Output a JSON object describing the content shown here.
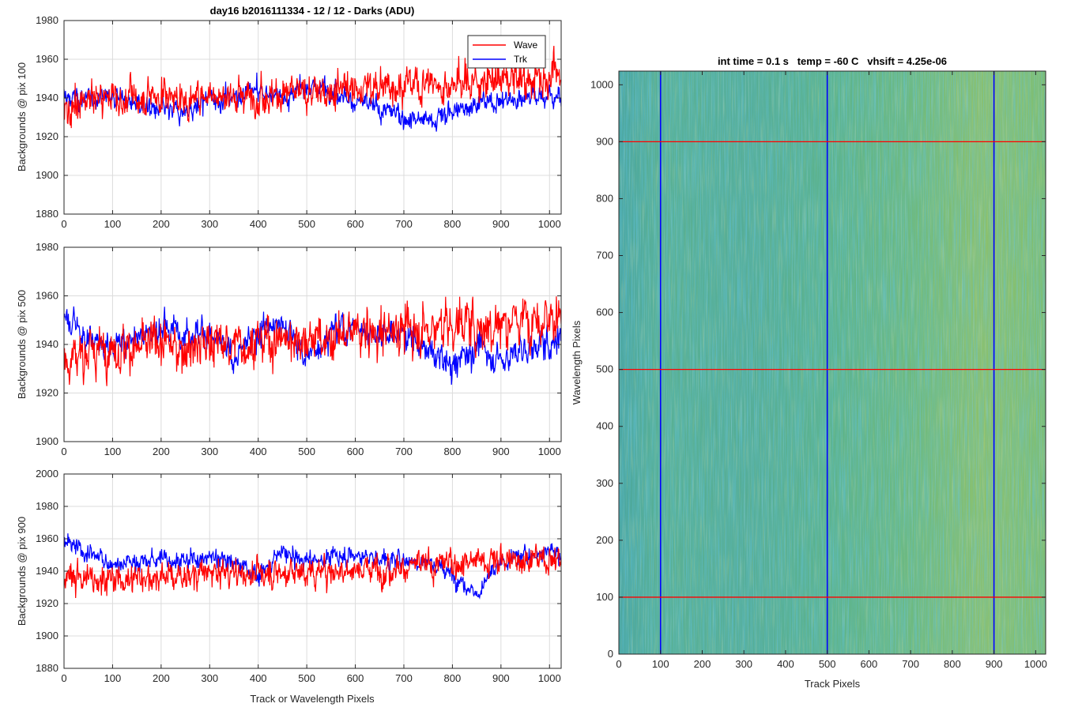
{
  "colors": {
    "wave": "#ff0000",
    "trk": "#0000ff",
    "grid": "#dcdcdc",
    "axis": "#262626",
    "image_base": "#5fb485"
  },
  "chart_data": [
    {
      "type": "line",
      "title": "day16 b2016111334 - 12 / 12 - Darks (ADU)",
      "xlabel": "",
      "ylabel": "Backgrounds @ pix 100",
      "xlim": [
        0,
        1024
      ],
      "ylim": [
        1880,
        1980
      ],
      "xticks": [
        0,
        100,
        200,
        300,
        400,
        500,
        600,
        700,
        800,
        900,
        1000
      ],
      "yticks": [
        1880,
        1900,
        1920,
        1940,
        1960,
        1980
      ],
      "grid": true,
      "legend": "top-right",
      "series": [
        {
          "name": "Wave",
          "color": "#ff0000",
          "x": [
            0,
            50,
            100,
            150,
            200,
            250,
            300,
            350,
            400,
            450,
            500,
            550,
            600,
            650,
            700,
            750,
            800,
            850,
            900,
            950,
            1000,
            1024
          ],
          "y": [
            1932,
            1939,
            1941,
            1940,
            1942,
            1939,
            1942,
            1941,
            1943,
            1942,
            1943,
            1944,
            1945,
            1946,
            1946,
            1947,
            1948,
            1949,
            1950,
            1949,
            1951,
            1952
          ]
        },
        {
          "name": "Trk",
          "color": "#0000ff",
          "x": [
            0,
            50,
            100,
            150,
            200,
            250,
            300,
            350,
            400,
            450,
            500,
            550,
            600,
            650,
            700,
            750,
            800,
            850,
            900,
            950,
            1000,
            1024
          ],
          "y": [
            1940,
            1939,
            1942,
            1937,
            1933,
            1932,
            1939,
            1941,
            1944,
            1940,
            1945,
            1946,
            1938,
            1935,
            1930,
            1928,
            1933,
            1937,
            1939,
            1941,
            1940,
            1942
          ]
        }
      ]
    },
    {
      "type": "line",
      "title": "",
      "xlabel": "",
      "ylabel": "Backgrounds @ pix 500",
      "xlim": [
        0,
        1024
      ],
      "ylim": [
        1900,
        1980
      ],
      "xticks": [
        0,
        100,
        200,
        300,
        400,
        500,
        600,
        700,
        800,
        900,
        1000
      ],
      "yticks": [
        1900,
        1920,
        1940,
        1960,
        1980
      ],
      "grid": true,
      "series": [
        {
          "name": "Wave",
          "color": "#ff0000",
          "x": [
            0,
            50,
            100,
            150,
            200,
            250,
            300,
            350,
            400,
            450,
            500,
            550,
            600,
            650,
            700,
            750,
            800,
            850,
            900,
            950,
            1000,
            1024
          ],
          "y": [
            1935,
            1937,
            1939,
            1938,
            1940,
            1939,
            1941,
            1940,
            1942,
            1941,
            1943,
            1942,
            1944,
            1945,
            1946,
            1947,
            1948,
            1948,
            1949,
            1950,
            1951,
            1951
          ]
        },
        {
          "name": "Trk",
          "color": "#0000ff",
          "x": [
            0,
            50,
            100,
            150,
            200,
            250,
            300,
            350,
            400,
            450,
            500,
            550,
            600,
            650,
            700,
            750,
            800,
            850,
            900,
            950,
            1000,
            1024
          ],
          "y": [
            1954,
            1942,
            1938,
            1944,
            1947,
            1946,
            1944,
            1934,
            1946,
            1949,
            1934,
            1946,
            1947,
            1944,
            1945,
            1937,
            1932,
            1939,
            1934,
            1938,
            1940,
            1945
          ]
        }
      ]
    },
    {
      "type": "line",
      "title": "",
      "xlabel": "Track or Wavelength Pixels",
      "ylabel": "Backgrounds @ pix 900",
      "xlim": [
        0,
        1024
      ],
      "ylim": [
        1880,
        2000
      ],
      "xticks": [
        0,
        100,
        200,
        300,
        400,
        500,
        600,
        700,
        800,
        900,
        1000
      ],
      "yticks": [
        1880,
        1900,
        1920,
        1940,
        1960,
        1980,
        2000
      ],
      "grid": true,
      "series": [
        {
          "name": "Wave",
          "color": "#ff0000",
          "x": [
            0,
            50,
            100,
            150,
            200,
            250,
            300,
            350,
            400,
            450,
            500,
            550,
            600,
            650,
            700,
            750,
            800,
            850,
            900,
            950,
            1000,
            1024
          ],
          "y": [
            1937,
            1936,
            1935,
            1936,
            1937,
            1937,
            1938,
            1938,
            1939,
            1939,
            1940,
            1940,
            1941,
            1942,
            1943,
            1944,
            1945,
            1946,
            1947,
            1947,
            1948,
            1948
          ]
        },
        {
          "name": "Trk",
          "color": "#0000ff",
          "x": [
            0,
            50,
            100,
            150,
            200,
            250,
            300,
            350,
            400,
            450,
            500,
            550,
            600,
            650,
            700,
            750,
            800,
            850,
            900,
            950,
            1000,
            1024
          ],
          "y": [
            1957,
            1950,
            1945,
            1945,
            1948,
            1947,
            1949,
            1946,
            1937,
            1951,
            1946,
            1949,
            1950,
            1948,
            1947,
            1946,
            1938,
            1926,
            1945,
            1950,
            1952,
            1950
          ]
        }
      ]
    },
    {
      "type": "heatmap",
      "title": "int time = 0.1 s   temp = -60 C   vhsift = 4.25e-06",
      "xlabel": "Track Pixels",
      "ylabel": "Wavelength Pixels",
      "xlim": [
        0,
        1024
      ],
      "ylim": [
        0,
        1024
      ],
      "xticks": [
        0,
        100,
        200,
        300,
        400,
        500,
        600,
        700,
        800,
        900,
        1000
      ],
      "yticks": [
        0,
        100,
        200,
        300,
        400,
        500,
        600,
        700,
        800,
        900,
        1000
      ],
      "colormap": "parula",
      "vertical_markers": {
        "color": "#0000ff",
        "x": [
          100,
          500,
          900
        ]
      },
      "horizontal_markers": {
        "color": "#ff0000",
        "y": [
          100,
          500,
          900
        ]
      }
    }
  ]
}
